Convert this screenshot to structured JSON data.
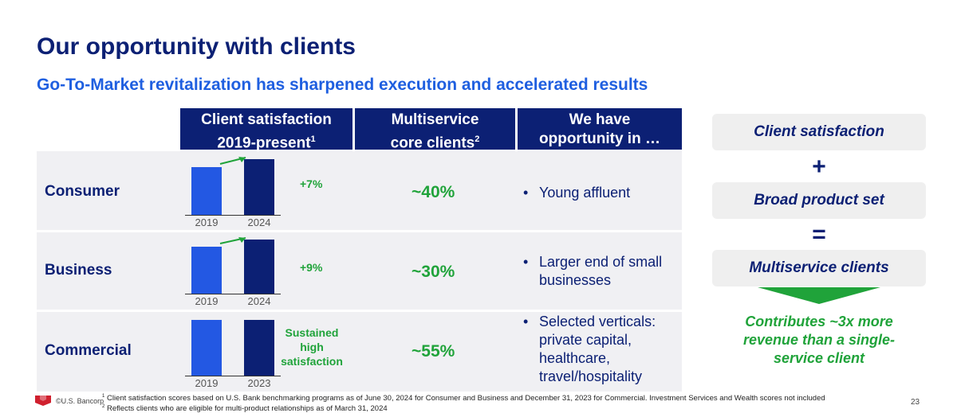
{
  "title": "Our opportunity with clients",
  "subtitle": "Go-To-Market revitalization has sharpened execution and accelerated results",
  "headers": {
    "satisfaction_line1": "Client satisfaction",
    "satisfaction_line2": "2019-present",
    "satisfaction_sup": "1",
    "multiservice_line1": "Multiservice",
    "multiservice_line2": "core clients",
    "multiservice_sup": "2",
    "opportunity_line1": "We have",
    "opportunity_line2": "opportunity in …"
  },
  "rows": [
    {
      "segment": "Consumer",
      "years": [
        "2019",
        "2024"
      ],
      "satisfaction_relative": [
        0.86,
        1.0
      ],
      "change": "+7%",
      "multiservice": "~40%",
      "opportunity": "Young affluent"
    },
    {
      "segment": "Business",
      "years": [
        "2019",
        "2024"
      ],
      "satisfaction_relative": [
        0.87,
        1.0
      ],
      "change": "+9%",
      "multiservice": "~30%",
      "opportunity": "Larger end of small businesses"
    },
    {
      "segment": "Commercial",
      "years": [
        "2019",
        "2023"
      ],
      "satisfaction_relative": [
        1.0,
        1.0
      ],
      "change": "Sustained high satisfaction",
      "multiservice": "~55%",
      "opportunity": "Selected verticals: private capital, healthcare, travel/hospitality"
    }
  ],
  "formula": {
    "item1": "Client satisfaction",
    "plus": "+",
    "item2": "Broad product set",
    "equals": "=",
    "item3": "Multiservice clients",
    "result": "Contributes ~3x more revenue than a single-service client"
  },
  "footer": {
    "copyright": "©U.S. Bancorp",
    "note1_num": "1",
    "note1": "Client satisfaction scores based on U.S. Bank benchmarking programs as of June 30, 2024 for Consumer and Business and December 31, 2023 for Commercial. Investment Services and Wealth scores not included",
    "note2_num": "2",
    "note2": "Reflects clients who are eligible for multi-product relationships as of March 31, 2024",
    "page": "23"
  },
  "colors": {
    "navy": "#0c2074",
    "bright_blue": "#2358e3",
    "green": "#20a33a",
    "logo_red": "#d0202e"
  }
}
